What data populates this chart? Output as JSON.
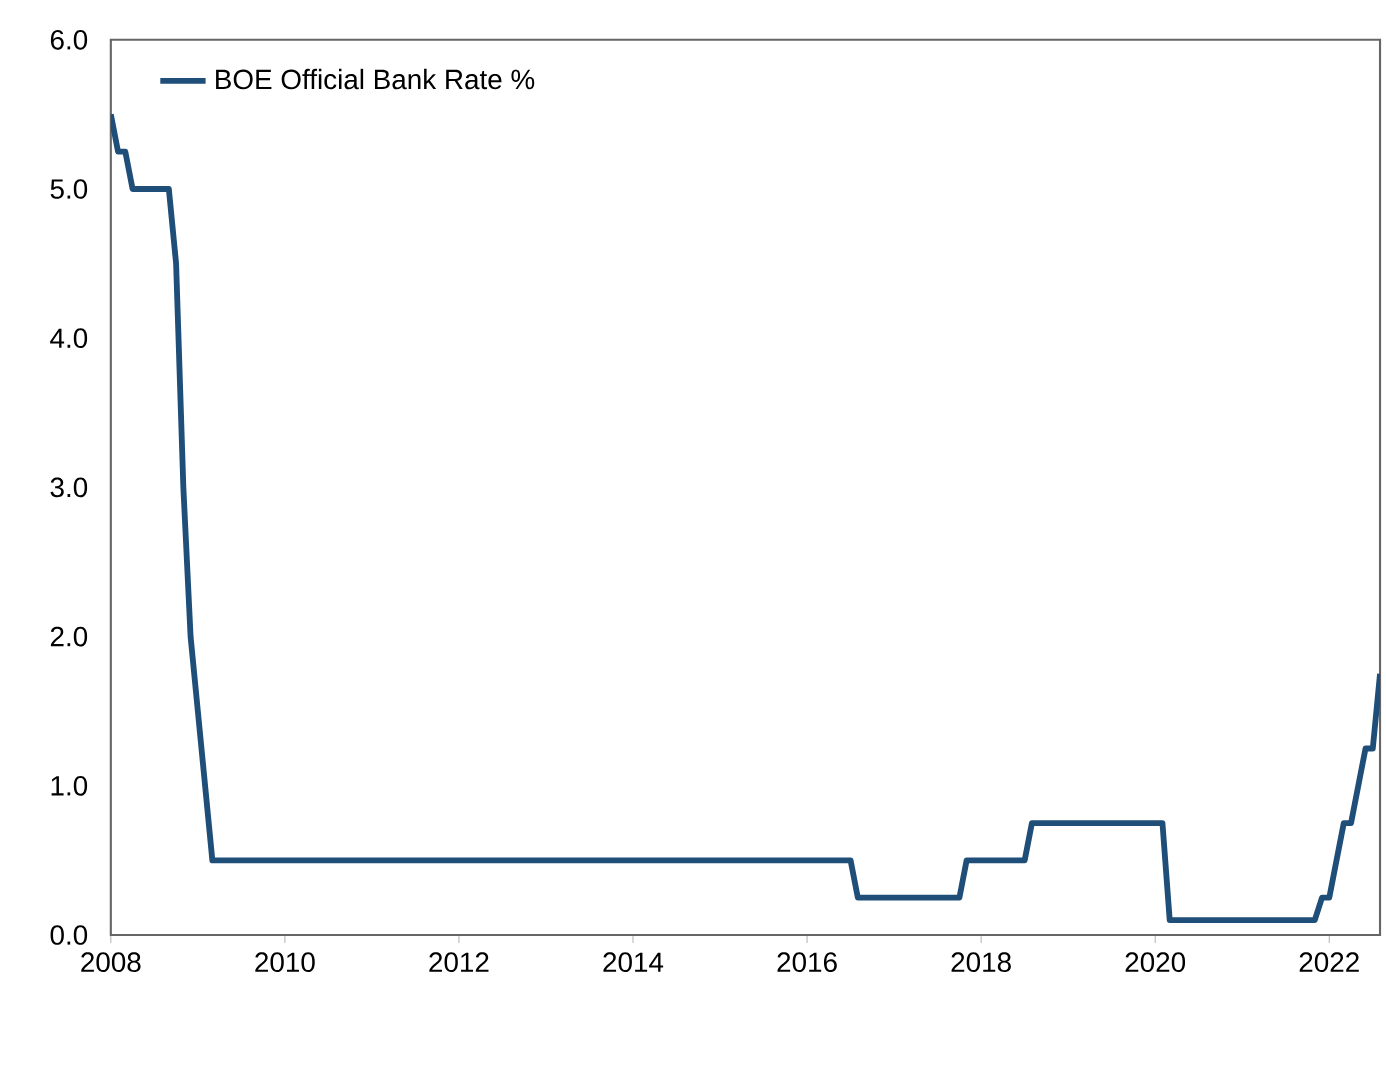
{
  "chart_data": {
    "type": "line",
    "x": [
      "2008-01",
      "2008-02",
      "2008-03",
      "2008-04",
      "2008-09",
      "2008-10",
      "2008-11",
      "2008-12",
      "2009-01",
      "2009-02",
      "2009-03",
      "2016-07",
      "2016-08",
      "2017-10",
      "2017-11",
      "2018-07",
      "2018-08",
      "2020-02",
      "2020-03",
      "2021-11",
      "2021-12",
      "2022-01",
      "2022-02",
      "2022-03",
      "2022-04",
      "2022-05",
      "2022-06",
      "2022-07",
      "2022-08"
    ],
    "series": [
      {
        "name": "BOE Official Bank Rate %",
        "color": "#1f4e79",
        "values": [
          5.5,
          5.25,
          5.25,
          5.0,
          5.0,
          4.5,
          3.0,
          2.0,
          1.5,
          1.0,
          0.5,
          0.5,
          0.25,
          0.25,
          0.5,
          0.5,
          0.75,
          0.75,
          0.1,
          0.1,
          0.25,
          0.25,
          0.5,
          0.75,
          0.75,
          1.0,
          1.25,
          1.25,
          1.75
        ]
      }
    ],
    "xlim": [
      "2008-01",
      "2022-08"
    ],
    "xticks": [
      "2008",
      "2010",
      "2012",
      "2014",
      "2016",
      "2018",
      "2020",
      "2022"
    ],
    "ylim": [
      0,
      6
    ],
    "yticks": [
      {
        "value": 0,
        "label": "0.0"
      },
      {
        "value": 1,
        "label": "1.0"
      },
      {
        "value": 2,
        "label": "2.0"
      },
      {
        "value": 3,
        "label": "3.0"
      },
      {
        "value": 4,
        "label": "4.0"
      },
      {
        "value": 5,
        "label": "5.0"
      },
      {
        "value": 6,
        "label": "6.0"
      }
    ],
    "legend": "top left",
    "grid": false,
    "marker": "none",
    "line_style": "solid"
  }
}
